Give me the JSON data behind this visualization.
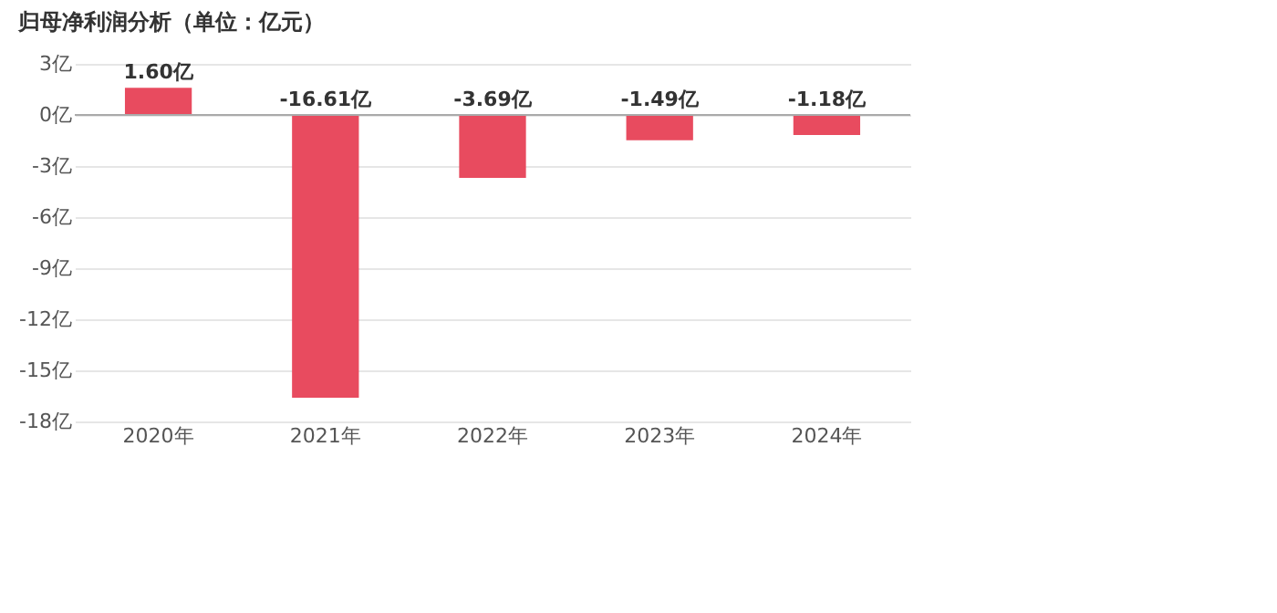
{
  "chart_data": {
    "type": "bar",
    "title": "归母净利润分析（单位：亿元）",
    "categories": [
      "2020年",
      "2021年",
      "2022年",
      "2023年",
      "2024年"
    ],
    "values": [
      1.6,
      -16.61,
      -3.69,
      -1.49,
      -1.18
    ],
    "value_labels": [
      "1.60亿",
      "-16.61亿",
      "-3.69亿",
      "-1.49亿",
      "-1.18亿"
    ],
    "color": "#e84b5f",
    "ylim": [
      -18,
      3
    ],
    "yticks": [
      {
        "value": 3,
        "label": "3亿"
      },
      {
        "value": 0,
        "label": "0亿"
      },
      {
        "value": -3,
        "label": "-3亿"
      },
      {
        "value": -6,
        "label": "-6亿"
      },
      {
        "value": -9,
        "label": "-9亿"
      },
      {
        "value": -12,
        "label": "-12亿"
      },
      {
        "value": -15,
        "label": "-15亿"
      },
      {
        "value": -18,
        "label": "-18亿"
      }
    ],
    "ref_lines": [
      {
        "axis": "y",
        "value": 0,
        "color": "#aaaaaa"
      }
    ],
    "grid": "y"
  }
}
